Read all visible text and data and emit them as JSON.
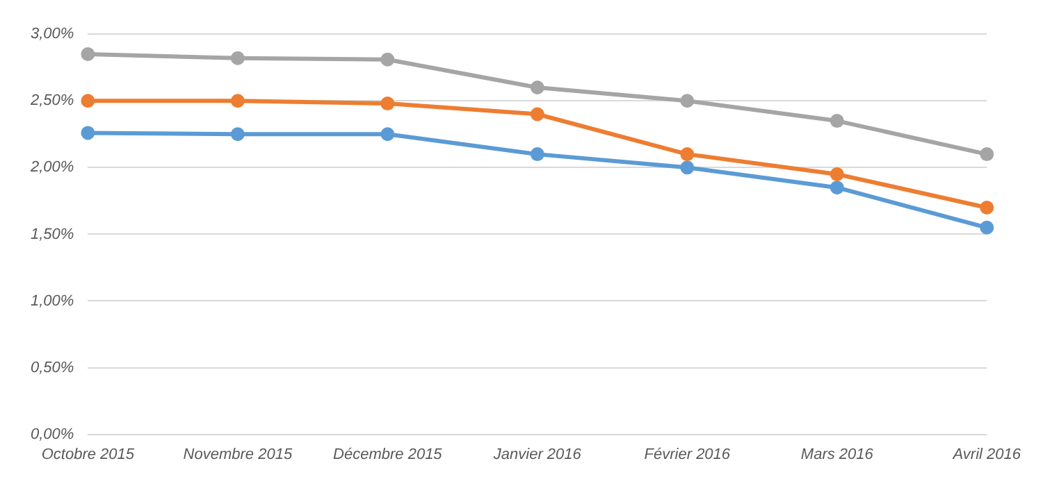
{
  "chart_data": {
    "type": "line",
    "categories": [
      "Octobre 2015",
      "Novembre 2015",
      "Décembre 2015",
      "Janvier 2016",
      "Février 2016",
      "Mars 2016",
      "Avril 2016"
    ],
    "series": [
      {
        "color": "#a5a5a5",
        "values": [
          2.85,
          2.82,
          2.81,
          2.6,
          2.5,
          2.35,
          2.1
        ]
      },
      {
        "color": "#ed7d31",
        "values": [
          2.5,
          2.5,
          2.48,
          2.4,
          2.1,
          1.95,
          1.7
        ]
      },
      {
        "color": "#5b9bd5",
        "values": [
          2.26,
          2.25,
          2.25,
          2.1,
          2.0,
          1.85,
          1.55
        ]
      }
    ],
    "ylim": [
      0,
      3
    ],
    "yticks": [
      {
        "value": 0,
        "label": "0,00%"
      },
      {
        "value": 0.5,
        "label": "0,50%"
      },
      {
        "value": 1,
        "label": "1,00%"
      },
      {
        "value": 1.5,
        "label": "1,50%"
      },
      {
        "value": 2,
        "label": "2,00%"
      },
      {
        "value": 2.5,
        "label": "2,50%"
      },
      {
        "value": 3,
        "label": "3,00%"
      }
    ],
    "grid": "y",
    "legend": false,
    "marker": "circle",
    "line_style": "solid"
  }
}
